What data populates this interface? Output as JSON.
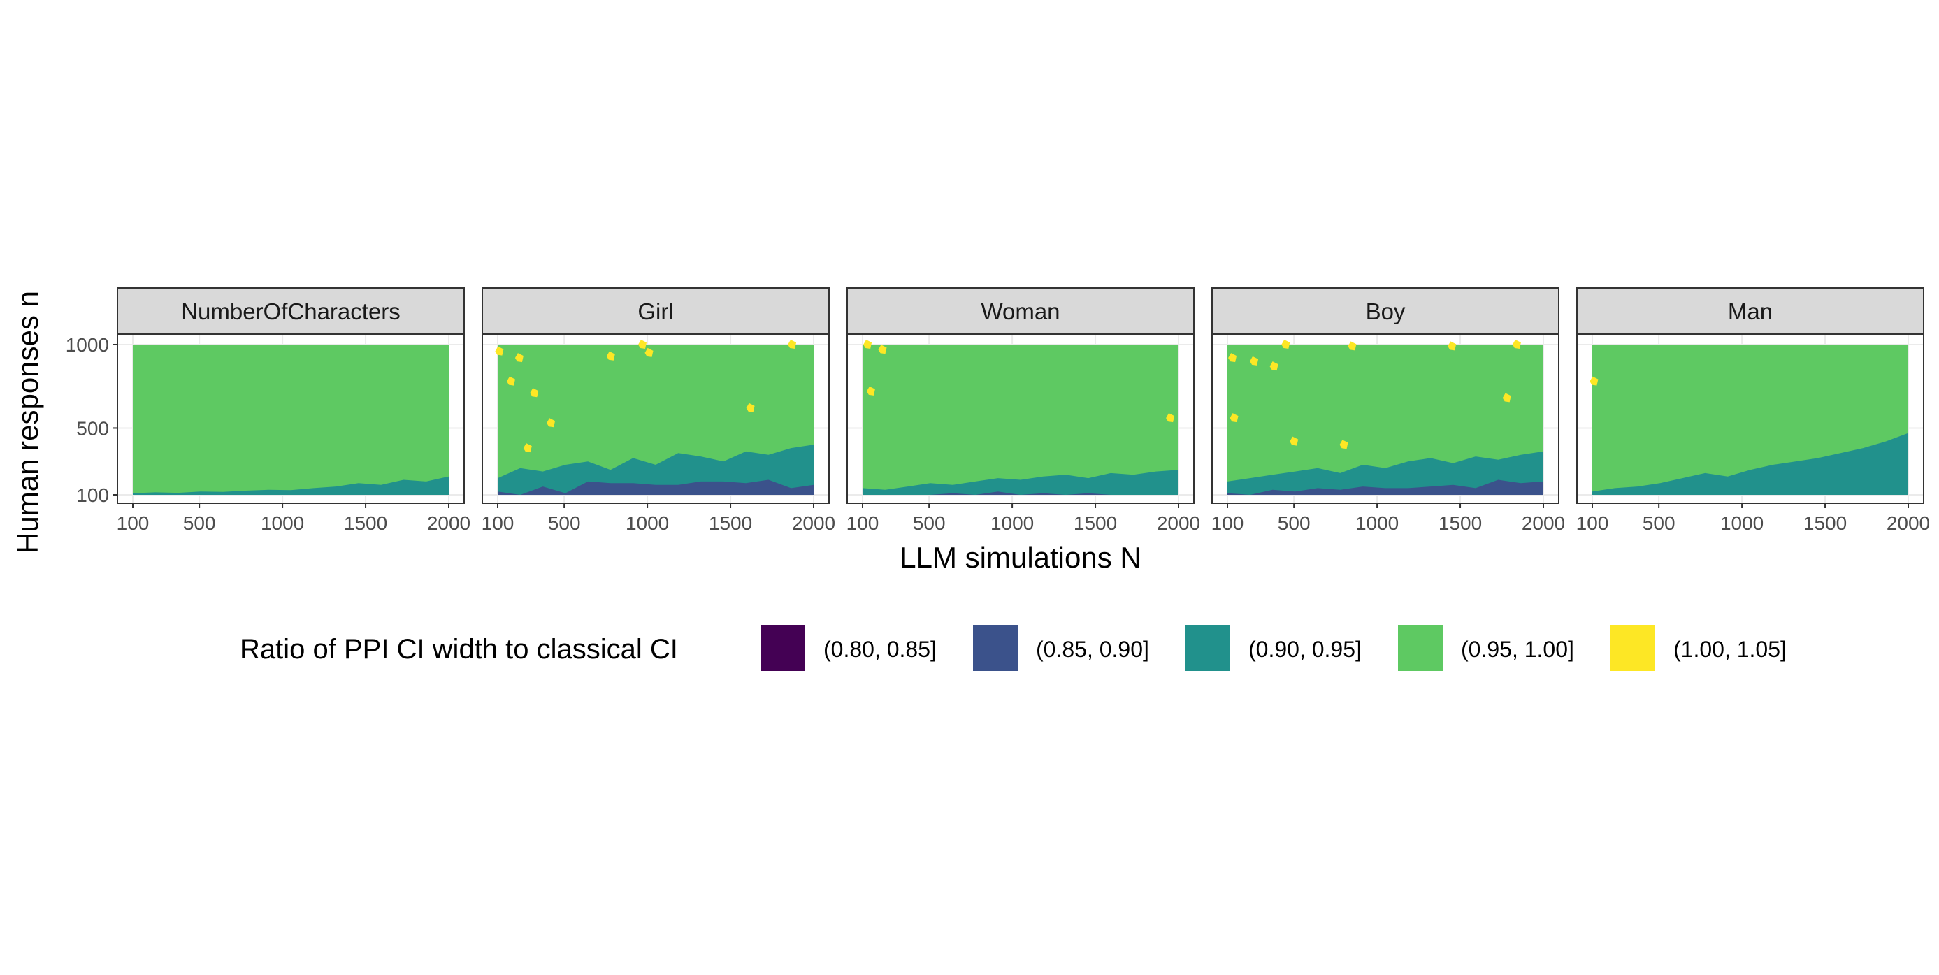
{
  "chart_data": {
    "type": "heatmap",
    "xlabel": "LLM simulations N",
    "ylabel": "Human responses n",
    "xlim": [
      100,
      2000
    ],
    "ylim": [
      100,
      1000
    ],
    "x_ticks": [
      100,
      500,
      1000,
      1500,
      2000
    ],
    "y_ticks": [
      100,
      500,
      1000
    ],
    "grid": true,
    "legend": {
      "title": "Ratio of PPI CI width to classical CI",
      "placement": "bottom",
      "bins": [
        {
          "label": "(0.80, 0.85]",
          "color": "#440154"
        },
        {
          "label": "(0.85, 0.90]",
          "color": "#3b528b"
        },
        {
          "label": "(0.90, 0.95]",
          "color": "#21918c"
        },
        {
          "label": "(0.95, 1.00]",
          "color": "#5ec962"
        },
        {
          "label": "(1.00, 1.05]",
          "color": "#fde725"
        }
      ]
    },
    "panels": [
      {
        "name": "NumberOfCharacters",
        "low_band_n": [
          110,
          115,
          112,
          120,
          118,
          125,
          130,
          128,
          140,
          150,
          170,
          160,
          190,
          180,
          210
        ],
        "dark_band_n": [
          100,
          100,
          100,
          100,
          100,
          100,
          100,
          100,
          100,
          100,
          100,
          100,
          100,
          100,
          100
        ],
        "high_spots": []
      },
      {
        "name": "Girl",
        "low_band_n": [
          200,
          260,
          240,
          280,
          300,
          250,
          320,
          280,
          350,
          330,
          300,
          360,
          340,
          380,
          400
        ],
        "dark_band_n": [
          120,
          130,
          150,
          140,
          180,
          200,
          170,
          190,
          160,
          210,
          180,
          200,
          190,
          170,
          160
        ],
        "high_spots": [
          [
            110,
            960
          ],
          [
            230,
            920
          ],
          [
            180,
            780
          ],
          [
            320,
            710
          ],
          [
            780,
            930
          ],
          [
            970,
            1000
          ],
          [
            1010,
            950
          ],
          [
            1870,
            1000
          ],
          [
            280,
            380
          ],
          [
            420,
            530
          ],
          [
            1620,
            620
          ]
        ]
      },
      {
        "name": "Woman",
        "low_band_n": [
          140,
          130,
          150,
          170,
          160,
          180,
          200,
          190,
          210,
          220,
          200,
          230,
          220,
          240,
          250
        ],
        "dark_band_n": [
          100,
          110,
          100,
          120,
          110,
          100,
          120,
          130,
          110,
          100,
          110,
          120,
          100,
          110,
          100
        ],
        "high_spots": [
          [
            130,
            1000
          ],
          [
            220,
            970
          ],
          [
            150,
            720
          ],
          [
            1950,
            560
          ]
        ]
      },
      {
        "name": "Boy",
        "low_band_n": [
          180,
          200,
          220,
          240,
          260,
          230,
          280,
          260,
          300,
          320,
          290,
          330,
          310,
          340,
          360
        ],
        "dark_band_n": [
          110,
          120,
          130,
          150,
          140,
          160,
          150,
          170,
          140,
          180,
          160,
          170,
          190,
          200,
          180
        ],
        "high_spots": [
          [
            130,
            920
          ],
          [
            260,
            900
          ],
          [
            380,
            870
          ],
          [
            450,
            1000
          ],
          [
            850,
            990
          ],
          [
            1450,
            990
          ],
          [
            1840,
            1000
          ],
          [
            1780,
            680
          ],
          [
            140,
            560
          ],
          [
            500,
            420
          ],
          [
            800,
            400
          ]
        ]
      },
      {
        "name": "Man",
        "low_band_n": [
          120,
          140,
          150,
          170,
          200,
          230,
          210,
          250,
          280,
          300,
          320,
          350,
          380,
          420,
          470
        ],
        "dark_band_n": [
          100,
          100,
          100,
          100,
          100,
          100,
          100,
          100,
          100,
          100,
          100,
          100,
          100,
          100,
          100
        ],
        "high_spots": [
          [
            110,
            780
          ]
        ]
      }
    ]
  }
}
